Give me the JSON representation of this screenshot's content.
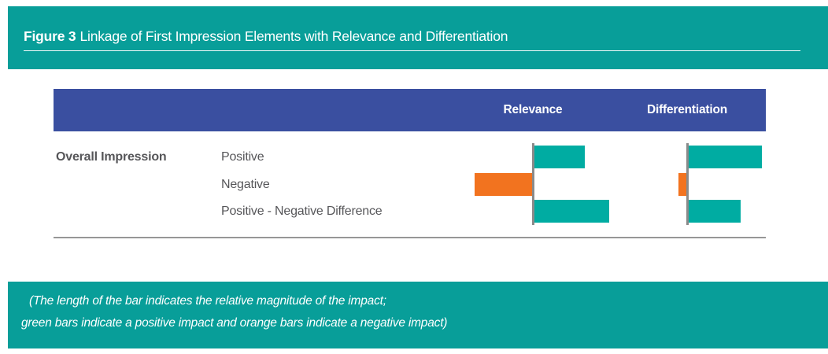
{
  "header": {
    "figure_label": "Figure 3",
    "title": "Linkage of First Impression Elements with Relevance and Differentiation"
  },
  "footnote": {
    "line1": "(The length of the bar indicates the relative magnitude of the impact;",
    "line2": "green bars indicate a positive impact and orange bars indicate a negative impact)"
  },
  "colors": {
    "teal_band": "#089E99",
    "blue_band": "#3A4FA0",
    "bar_teal": "#00ACA2",
    "bar_orange": "#F2731F",
    "axis_gray": "#8A8A8A",
    "text_dark": "#565659"
  },
  "chart_data": {
    "type": "bar",
    "orientation": "horizontal",
    "title": "Figure 3 Linkage of First Impression Elements with Relevance and Differentiation",
    "group_label": "Overall Impression",
    "categories": [
      "Positive",
      "Negative",
      "Positive - Negative Difference"
    ],
    "series": [
      {
        "name": "Relevance",
        "values": [
          64,
          -73,
          95
        ]
      },
      {
        "name": "Differentiation",
        "values": [
          93,
          -10,
          66
        ]
      }
    ],
    "value_axis": "none shown (qualitative: bar length = relative magnitude of impact, px)",
    "positive_color": "#00ACA2",
    "negative_color": "#F2731F",
    "legend": "green/teal bars = positive impact; orange bars = negative impact",
    "grid": false,
    "legend_position": "footnote band below chart"
  }
}
